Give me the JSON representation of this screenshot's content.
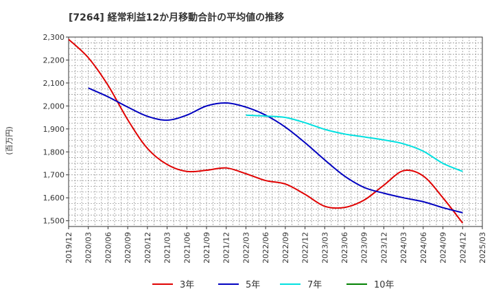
{
  "chart_data": {
    "type": "line",
    "title": "[7264]  経常利益12か月移動合計の平均値の推移",
    "ylabel": "(百万円)",
    "xlabel": "",
    "ylim": [
      1475,
      2300
    ],
    "yticks": [
      1500,
      1600,
      1700,
      1800,
      1900,
      2000,
      2100,
      2200,
      2300
    ],
    "ytick_labels": [
      "1,500",
      "1,600",
      "1,700",
      "1,800",
      "1,900",
      "2,000",
      "2,100",
      "2,200",
      "2,300"
    ],
    "xticks": [
      "2019/12",
      "2020/03",
      "2020/06",
      "2020/09",
      "2020/12",
      "2021/03",
      "2021/06",
      "2021/09",
      "2021/12",
      "2022/03",
      "2022/06",
      "2022/09",
      "2022/12",
      "2023/03",
      "2023/06",
      "2023/09",
      "2023/12",
      "2024/03",
      "2024/06",
      "2024/09",
      "2024/12",
      "2025/03"
    ],
    "grid": true,
    "legend_position": "bottom",
    "series": [
      {
        "name": "3年",
        "color": "#e00000",
        "points": [
          [
            "2019/12",
            2290
          ],
          [
            "2020/03",
            2210
          ],
          [
            "2020/06",
            2090
          ],
          [
            "2020/09",
            1940
          ],
          [
            "2020/12",
            1815
          ],
          [
            "2021/03",
            1745
          ],
          [
            "2021/06",
            1715
          ],
          [
            "2021/09",
            1720
          ],
          [
            "2021/12",
            1730
          ],
          [
            "2022/03",
            1705
          ],
          [
            "2022/06",
            1675
          ],
          [
            "2022/09",
            1660
          ],
          [
            "2022/12",
            1615
          ],
          [
            "2023/03",
            1563
          ],
          [
            "2023/06",
            1558
          ],
          [
            "2023/09",
            1590
          ],
          [
            "2023/12",
            1655
          ],
          [
            "2024/03",
            1718
          ],
          [
            "2024/06",
            1695
          ],
          [
            "2024/09",
            1600
          ],
          [
            "2024/12",
            1490
          ]
        ]
      },
      {
        "name": "5年",
        "color": "#0000c0",
        "points": [
          [
            "2020/03",
            2078
          ],
          [
            "2020/06",
            2040
          ],
          [
            "2020/09",
            1995
          ],
          [
            "2020/12",
            1955
          ],
          [
            "2021/03",
            1938
          ],
          [
            "2021/06",
            1960
          ],
          [
            "2021/09",
            2000
          ],
          [
            "2021/12",
            2013
          ],
          [
            "2022/03",
            1995
          ],
          [
            "2022/06",
            1960
          ],
          [
            "2022/09",
            1908
          ],
          [
            "2022/12",
            1840
          ],
          [
            "2023/03",
            1765
          ],
          [
            "2023/06",
            1695
          ],
          [
            "2023/09",
            1645
          ],
          [
            "2023/12",
            1620
          ],
          [
            "2024/03",
            1600
          ],
          [
            "2024/06",
            1583
          ],
          [
            "2024/09",
            1557
          ],
          [
            "2024/12",
            1535
          ]
        ]
      },
      {
        "name": "7年",
        "color": "#00e0e0",
        "points": [
          [
            "2022/03",
            1960
          ],
          [
            "2022/06",
            1956
          ],
          [
            "2022/09",
            1950
          ],
          [
            "2022/12",
            1927
          ],
          [
            "2023/03",
            1898
          ],
          [
            "2023/06",
            1878
          ],
          [
            "2023/09",
            1865
          ],
          [
            "2023/12",
            1852
          ],
          [
            "2024/03",
            1835
          ],
          [
            "2024/06",
            1803
          ],
          [
            "2024/09",
            1750
          ],
          [
            "2024/12",
            1715
          ]
        ]
      },
      {
        "name": "10年",
        "color": "#008000",
        "points": []
      }
    ]
  }
}
